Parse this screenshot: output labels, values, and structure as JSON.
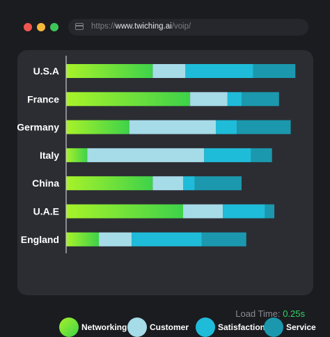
{
  "window": {
    "url_prefix": "https://",
    "url_host": "www.twiching.ai",
    "url_path": "/voip/",
    "colors": {
      "red": "#f0564f",
      "yellow": "#f5b93a",
      "green": "#3ec55a"
    }
  },
  "chart_data": {
    "type": "bar",
    "orientation": "horizontal",
    "stacked": true,
    "categories": [
      "U.S.A",
      "France",
      "Germany",
      "Italy",
      "China",
      "U.A.E",
      "England"
    ],
    "series": [
      {
        "name": "Networking",
        "values": [
          37,
          53,
          27,
          9,
          37,
          50,
          14
        ],
        "color": "#3ed24a",
        "gradient_start": "#a8f229"
      },
      {
        "name": "Customer",
        "values": [
          14,
          16,
          37,
          50,
          13,
          17,
          14
        ],
        "color": "#a6dbe8"
      },
      {
        "name": "Satisfaction",
        "values": [
          29,
          6,
          9,
          20,
          5,
          18,
          30
        ],
        "color": "#1fbcd9"
      },
      {
        "name": "Service",
        "values": [
          18,
          16,
          23,
          9,
          20,
          4,
          19
        ],
        "color": "#1b98ad"
      }
    ],
    "xlim": [
      0,
      100
    ],
    "grid": false,
    "legend_position": "bottom"
  },
  "footer": {
    "load_label": "Load Time:",
    "load_value": "0.25s"
  }
}
